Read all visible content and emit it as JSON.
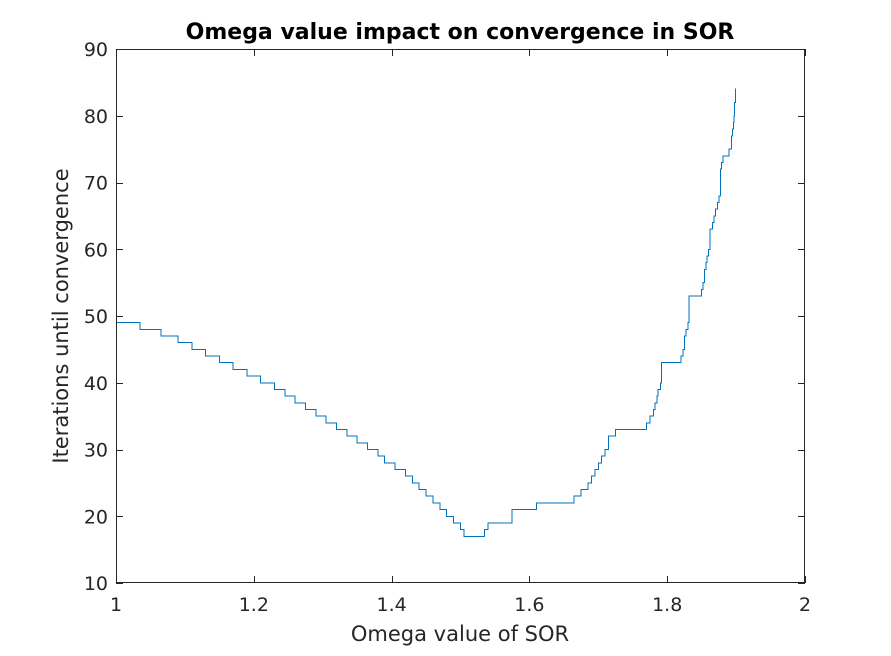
{
  "chart_data": {
    "type": "line",
    "title": "Omega value impact on convergence in SOR",
    "xlabel": "Omega value of SOR",
    "ylabel": "Iterations until convergence",
    "xlim": [
      1,
      2
    ],
    "ylim": [
      10,
      90
    ],
    "xticks": [
      "1",
      "1.2",
      "1.4",
      "1.6",
      "1.8",
      "2"
    ],
    "yticks": [
      "10",
      "20",
      "30",
      "40",
      "50",
      "60",
      "70",
      "80",
      "90"
    ],
    "grid": false,
    "step": true,
    "series": [
      {
        "color": "#0072bd",
        "x": [
          1.0,
          1.035,
          1.065,
          1.09,
          1.11,
          1.13,
          1.15,
          1.17,
          1.19,
          1.21,
          1.23,
          1.245,
          1.26,
          1.275,
          1.29,
          1.305,
          1.32,
          1.335,
          1.35,
          1.365,
          1.38,
          1.39,
          1.405,
          1.42,
          1.43,
          1.44,
          1.45,
          1.46,
          1.47,
          1.48,
          1.49,
          1.5,
          1.505,
          1.51,
          1.515,
          1.535,
          1.54,
          1.575,
          1.61,
          1.665,
          1.675,
          1.685,
          1.69,
          1.695,
          1.7,
          1.705,
          1.71,
          1.715,
          1.72,
          1.725,
          1.745,
          1.77,
          1.775,
          1.78,
          1.782,
          1.785,
          1.787,
          1.79,
          1.792,
          1.795,
          1.82,
          1.823,
          1.825,
          1.827,
          1.83,
          1.832,
          1.835,
          1.85,
          1.852,
          1.854,
          1.856,
          1.858,
          1.86,
          1.862,
          1.864,
          1.866,
          1.868,
          1.87,
          1.873,
          1.875,
          1.877,
          1.879,
          1.881,
          1.883,
          1.885,
          1.89,
          1.893,
          1.895,
          1.896,
          1.897,
          1.898,
          1.899,
          1.9
        ],
        "y": [
          49,
          48,
          47,
          46,
          45,
          44,
          43,
          42,
          41,
          40,
          39,
          38,
          37,
          36,
          35,
          34,
          33,
          32,
          31,
          30,
          29,
          28,
          27,
          26,
          25,
          24,
          23,
          22,
          21,
          20,
          19,
          18,
          17,
          17,
          17,
          18,
          19,
          21,
          22,
          23,
          24,
          25,
          26,
          27,
          28,
          29,
          30,
          32,
          32,
          33,
          33,
          34,
          35,
          36,
          37,
          38,
          39,
          40,
          43,
          43,
          44,
          45,
          47,
          48,
          49,
          53,
          53,
          54,
          55,
          57,
          58,
          59,
          60,
          63,
          63,
          64,
          65,
          66,
          67,
          68,
          72,
          73,
          74,
          74,
          74,
          75,
          77,
          78,
          79,
          80,
          82,
          84,
          84
        ]
      }
    ]
  }
}
